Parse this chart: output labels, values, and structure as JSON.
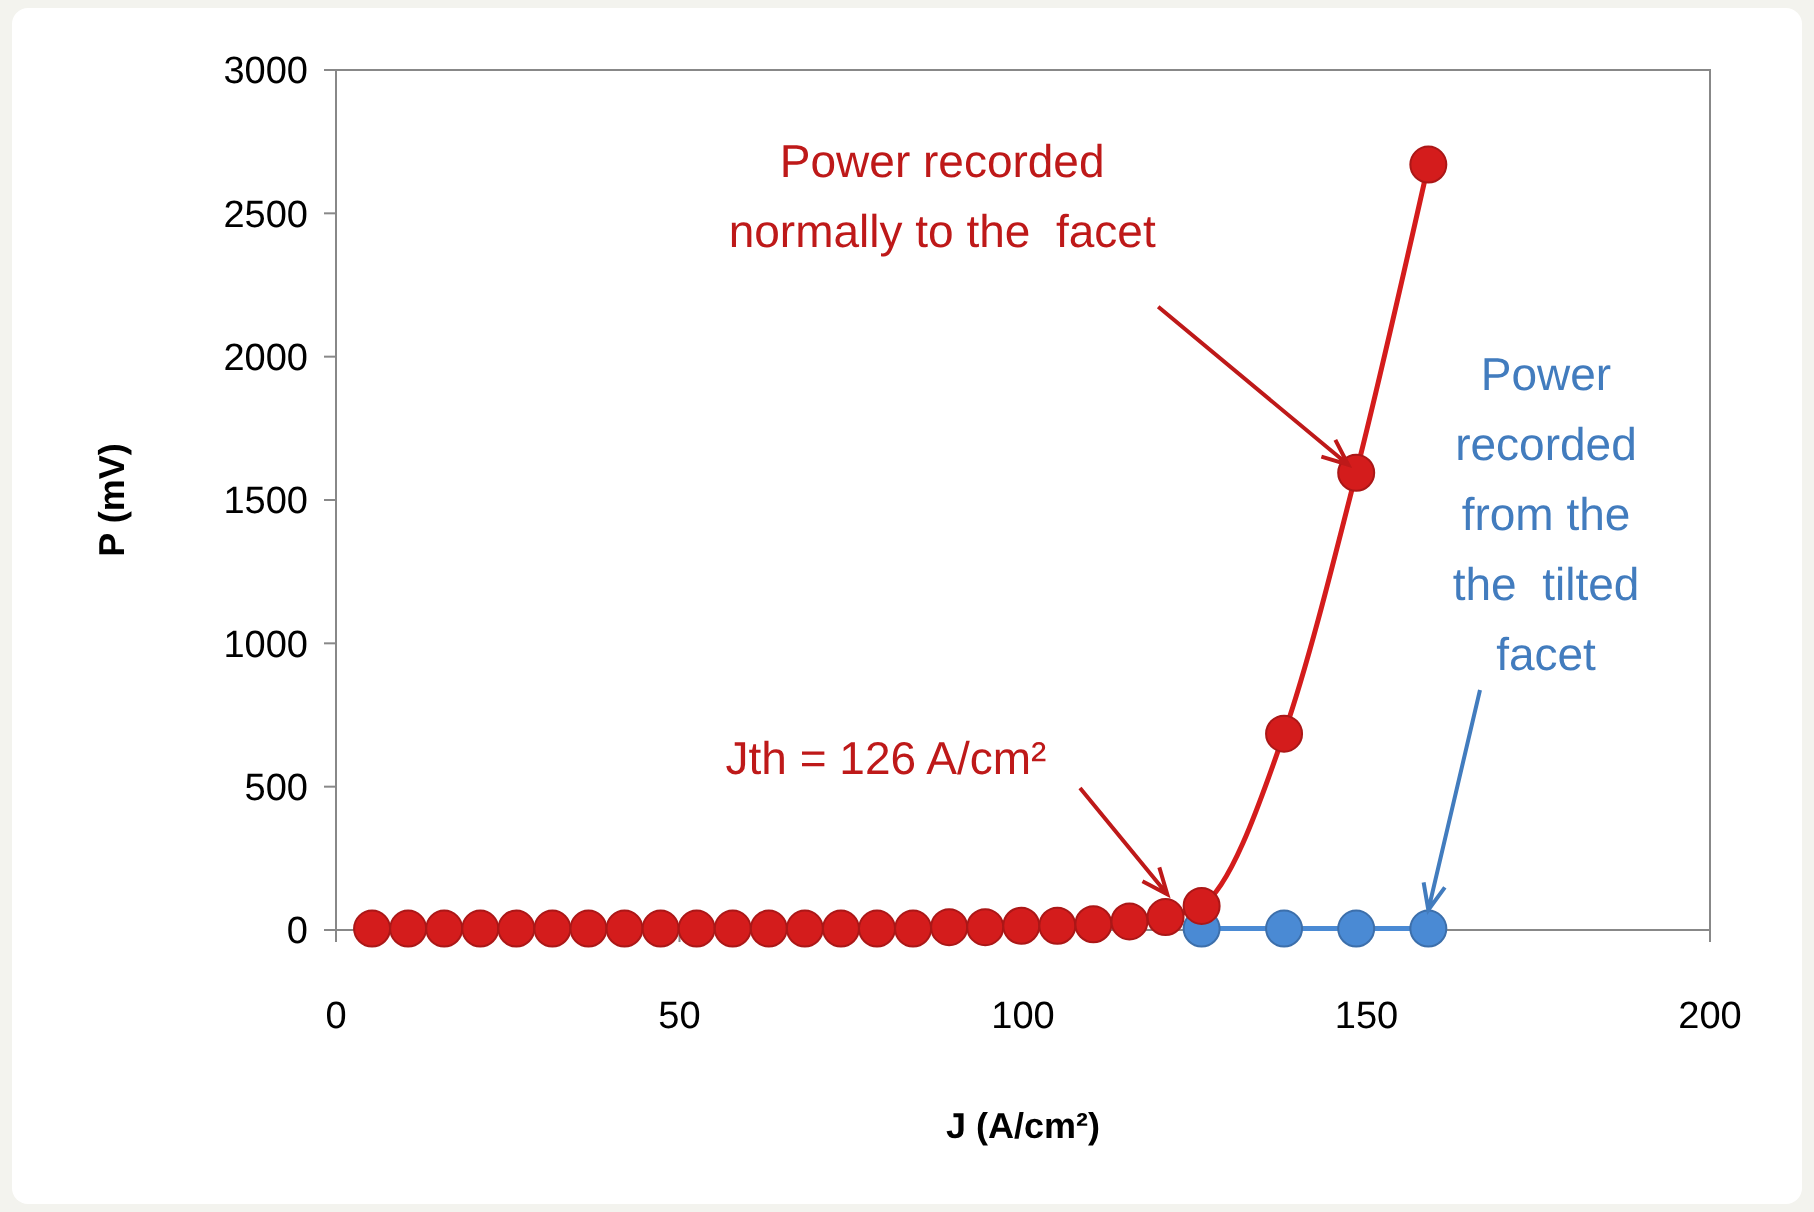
{
  "chart_data": {
    "type": "line",
    "xlabel": "J (A/cm²)",
    "ylabel": "P (mV)",
    "xlim": [
      0,
      200
    ],
    "xticks": [
      0,
      50,
      100,
      150,
      200
    ],
    "ylim": [
      0,
      3000
    ],
    "yticks": [
      0,
      500,
      1000,
      1500,
      2000,
      2500,
      3000
    ],
    "grid": false,
    "legend": false,
    "marker": "circle",
    "line_style": "solid",
    "series": [
      {
        "color": "#4a8ad4",
        "x": [
          126,
          138,
          148.5,
          159
        ],
        "values": [
          5,
          5,
          5,
          5
        ]
      },
      {
        "color": "#d41c1c",
        "x": [
          5.25,
          10.5,
          15.75,
          21,
          26.25,
          31.5,
          36.75,
          42,
          47.25,
          52.5,
          57.75,
          63,
          68.25,
          73.5,
          78.75,
          84,
          89.25,
          94.5,
          99.75,
          105,
          110.25,
          115.5,
          120.75,
          126,
          138,
          148.5,
          159
        ],
        "values": [
          5,
          5,
          5,
          5,
          5,
          5,
          5,
          5,
          5,
          5,
          5,
          5,
          5,
          5,
          5,
          5,
          10,
          10,
          15,
          15,
          20,
          30,
          45,
          84,
          685,
          1595,
          2670
        ]
      }
    ],
    "annotations": [
      {
        "text": "Power recorded\nnormally to the  facet",
        "x": 148.5,
        "y": 1595
      },
      {
        "text": "Jth = 126 A/cm²",
        "x": 121,
        "y": 125
      },
      {
        "text": "Power\nrecorded\nfrom the\nthe  tilted\nfacet",
        "x": 159,
        "y": 70
      }
    ]
  }
}
